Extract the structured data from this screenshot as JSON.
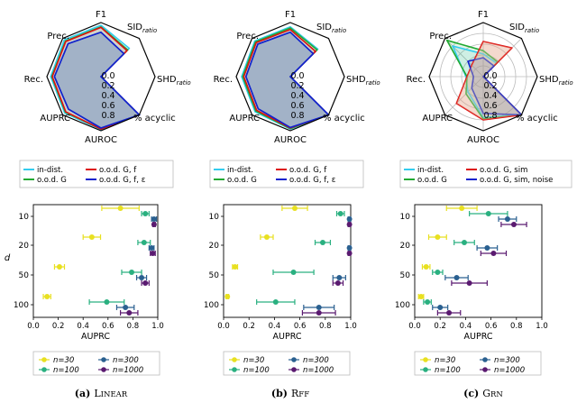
{
  "radar": {
    "axes": [
      "F1",
      "SID_ratio",
      "SHD_ratio",
      "% acyclic",
      "AUROC",
      "AUPRC",
      "Rec.",
      "Prec."
    ],
    "axis_labels": {
      "f1": "F1",
      "sid_main": "SID",
      "sid_sub": "ratio",
      "shd_main": "SHD",
      "shd_sub": "ratio",
      "acyclic": "% acyclic",
      "auroc": "AUROC",
      "auprc": "AUPRC",
      "rec": "Rec.",
      "prec": "Prec."
    },
    "ticks": [
      "0.0",
      "0.2",
      "0.4",
      "0.6",
      "0.8"
    ]
  },
  "legend_radar": {
    "linear": {
      "in_dist": "in-dist.",
      "ood_G": "o.o.d. G",
      "ood_G_f": "o.o.d. G, f",
      "ood_G_f_eps": "o.o.d. G, f, ε"
    },
    "rff": {
      "in_dist": "in-dist.",
      "ood_G": "o.o.d. G",
      "ood_G_f": "o.o.d. G, f",
      "ood_G_f_eps": "o.o.d. G, f, ε"
    },
    "grn": {
      "in_dist": "in-dist.",
      "ood_G": "o.o.d. G",
      "ood_G_sim": "o.o.d. G, sim",
      "ood_G_sim_noise": "o.o.d. G, sim, noise"
    }
  },
  "legend_scatter": {
    "n30": "n=30",
    "n100": "n=100",
    "n300": "n=300",
    "n1000": "n=1000"
  },
  "axes_text": {
    "xlabel": "AUPRC",
    "ylabel": "d",
    "yticks": [
      "10",
      "20",
      "50",
      "100"
    ],
    "xticks": [
      "0.0",
      "0.2",
      "0.4",
      "0.6",
      "0.8",
      "1.0"
    ]
  },
  "captions": {
    "linear": {
      "num": "(a)",
      "first": "L",
      "rest": "INEAR"
    },
    "rff": {
      "num": "(b)",
      "first": "R",
      "rest": "FF"
    },
    "grn": {
      "num": "(c)",
      "first": "G",
      "rest": "RN"
    }
  },
  "colors": {
    "in_dist": "#33ccee",
    "ood_G": "#22aa33",
    "ood_G_f": "#dd1111",
    "ood_G_f_eps": "#1122cc",
    "n30": "#e8e020",
    "n100": "#2ab080",
    "n300": "#2a6090",
    "n1000": "#5a1a70"
  },
  "chart_data": [
    {
      "type": "radar",
      "panel": "linear",
      "series": [
        {
          "name": "in-dist.",
          "values": [
            0.95,
            0.74,
            0.0,
            1.0,
            0.98,
            0.95,
            0.93,
            0.96
          ]
        },
        {
          "name": "o.o.d. G",
          "values": [
            0.92,
            0.7,
            0.0,
            1.0,
            0.97,
            0.93,
            0.91,
            0.93
          ]
        },
        {
          "name": "o.o.d. G, f",
          "values": [
            0.91,
            0.68,
            0.0,
            1.0,
            0.97,
            0.92,
            0.9,
            0.92
          ]
        },
        {
          "name": "o.o.d. G, f, ε",
          "values": [
            0.82,
            0.6,
            0.0,
            1.0,
            0.95,
            0.85,
            0.86,
            0.86
          ]
        }
      ]
    },
    {
      "type": "radar",
      "panel": "rff",
      "series": [
        {
          "name": "in-dist.",
          "values": [
            0.92,
            0.72,
            0.0,
            1.0,
            0.97,
            0.92,
            0.9,
            0.93
          ]
        },
        {
          "name": "o.o.d. G",
          "values": [
            0.9,
            0.7,
            0.0,
            1.0,
            0.96,
            0.9,
            0.88,
            0.91
          ]
        },
        {
          "name": "o.o.d. G, f",
          "values": [
            0.87,
            0.66,
            0.0,
            1.0,
            0.95,
            0.88,
            0.86,
            0.89
          ]
        },
        {
          "name": "o.o.d. G, f, ε",
          "values": [
            0.82,
            0.6,
            0.0,
            1.0,
            0.94,
            0.84,
            0.82,
            0.85
          ]
        }
      ]
    },
    {
      "type": "radar",
      "panel": "grn",
      "series": [
        {
          "name": "in-dist.",
          "values": [
            0.42,
            0.35,
            0.0,
            1.0,
            0.75,
            0.4,
            0.32,
            0.8
          ]
        },
        {
          "name": "o.o.d. G",
          "values": [
            0.48,
            0.38,
            0.0,
            1.0,
            0.78,
            0.45,
            0.3,
            0.95
          ]
        },
        {
          "name": "o.o.d. G, sim",
          "values": [
            0.65,
            0.75,
            0.0,
            1.0,
            0.8,
            0.7,
            0.3,
            0.3
          ]
        },
        {
          "name": "o.o.d. G, sim, noise",
          "values": [
            0.35,
            0.28,
            0.0,
            1.0,
            0.68,
            0.3,
            0.18,
            0.4
          ]
        }
      ]
    },
    {
      "type": "scatter",
      "panel": "linear",
      "xlabel": "AUPRC",
      "ylabel": "d",
      "xlim": [
        0,
        1.0
      ],
      "categories": [
        "10",
        "20",
        "50",
        "100"
      ],
      "series": [
        {
          "name": "n=30",
          "values": [
            0.7,
            0.47,
            0.21,
            0.11
          ],
          "errors": [
            0.15,
            0.07,
            0.04,
            0.03
          ]
        },
        {
          "name": "n=100",
          "values": [
            0.9,
            0.89,
            0.79,
            0.59
          ],
          "errors": [
            0.03,
            0.05,
            0.08,
            0.14
          ]
        },
        {
          "name": "n=300",
          "values": [
            0.97,
            0.95,
            0.87,
            0.74
          ],
          "errors": [
            0.02,
            0.02,
            0.04,
            0.07
          ]
        },
        {
          "name": "n=1000",
          "values": [
            0.97,
            0.96,
            0.9,
            0.77
          ],
          "errors": [
            0.01,
            0.02,
            0.03,
            0.07
          ]
        }
      ]
    },
    {
      "type": "scatter",
      "panel": "rff",
      "xlabel": "AUPRC",
      "ylabel": "d",
      "xlim": [
        0,
        1.0
      ],
      "categories": [
        "10",
        "20",
        "50",
        "100"
      ],
      "series": [
        {
          "name": "n=30",
          "values": [
            0.56,
            0.34,
            0.09,
            0.03
          ],
          "errors": [
            0.1,
            0.05,
            0.02,
            0.01
          ]
        },
        {
          "name": "n=100",
          "values": [
            0.92,
            0.78,
            0.55,
            0.41
          ],
          "errors": [
            0.03,
            0.06,
            0.16,
            0.15
          ]
        },
        {
          "name": "n=300",
          "values": [
            0.99,
            0.99,
            0.91,
            0.75
          ],
          "errors": [
            0.01,
            0.01,
            0.05,
            0.12
          ]
        },
        {
          "name": "n=1000",
          "values": [
            0.99,
            0.99,
            0.9,
            0.75
          ],
          "errors": [
            0.01,
            0.01,
            0.04,
            0.13
          ]
        }
      ]
    },
    {
      "type": "scatter",
      "panel": "grn",
      "xlabel": "AUPRC",
      "ylabel": "d",
      "xlim": [
        0,
        1.0
      ],
      "categories": [
        "10",
        "20",
        "50",
        "100"
      ],
      "series": [
        {
          "name": "n=30",
          "values": [
            0.37,
            0.18,
            0.09,
            0.05
          ],
          "errors": [
            0.12,
            0.07,
            0.03,
            0.02
          ]
        },
        {
          "name": "n=100",
          "values": [
            0.58,
            0.39,
            0.18,
            0.1
          ],
          "errors": [
            0.15,
            0.08,
            0.04,
            0.03
          ]
        },
        {
          "name": "n=300",
          "values": [
            0.73,
            0.57,
            0.33,
            0.2
          ],
          "errors": [
            0.07,
            0.08,
            0.09,
            0.06
          ]
        },
        {
          "name": "n=1000",
          "values": [
            0.78,
            0.62,
            0.43,
            0.27
          ],
          "errors": [
            0.1,
            0.1,
            0.14,
            0.09
          ]
        }
      ]
    }
  ]
}
